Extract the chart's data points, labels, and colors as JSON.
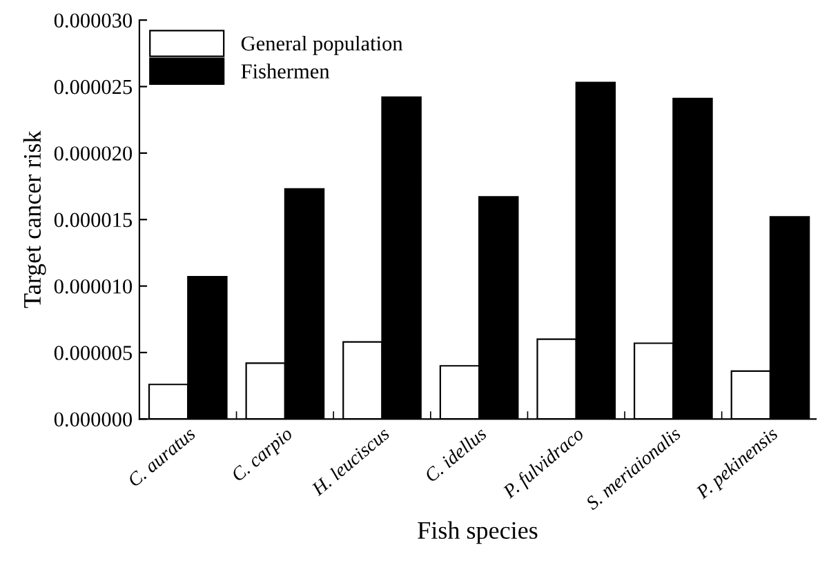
{
  "chart_data": {
    "type": "bar",
    "xlabel": "Fish species",
    "ylabel": "Target cancer risk",
    "categories": [
      "C. auratus",
      "C. carpio",
      "H. leuciscus",
      "C. idellus",
      "P. fulvidraco",
      "S. meriaionalis",
      "P. pekinensis"
    ],
    "series": [
      {
        "name": "General population",
        "color": "#ffffff",
        "values": [
          2.6e-06,
          4.2e-06,
          5.8e-06,
          4e-06,
          6e-06,
          5.7e-06,
          3.6e-06
        ]
      },
      {
        "name": "Fishermen",
        "color": "#000000",
        "values": [
          1.07e-05,
          1.73e-05,
          2.42e-05,
          1.67e-05,
          2.53e-05,
          2.41e-05,
          1.52e-05
        ]
      }
    ],
    "ylim": [
      0,
      3e-05
    ],
    "yticks": [
      {
        "value": 0,
        "label": "0.000000"
      },
      {
        "value": 5e-06,
        "label": "0.000005"
      },
      {
        "value": 1e-05,
        "label": "0.000010"
      },
      {
        "value": 1.5e-05,
        "label": "0.000015"
      },
      {
        "value": 2e-05,
        "label": "0.000020"
      },
      {
        "value": 2.5e-05,
        "label": "0.000025"
      },
      {
        "value": 3e-05,
        "label": "0.000030"
      }
    ],
    "grid": false,
    "legend": "top left"
  }
}
